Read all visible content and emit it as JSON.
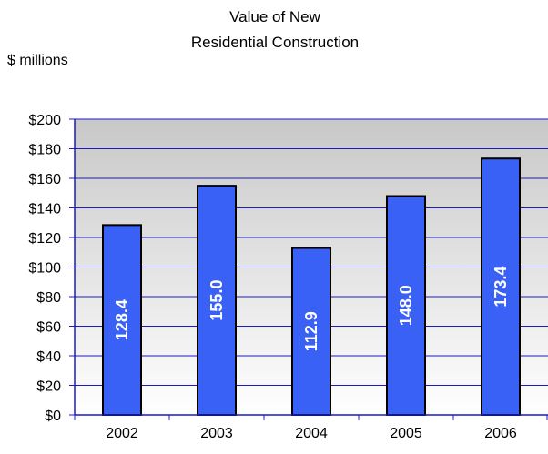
{
  "chart_data": {
    "type": "bar",
    "title_lines": [
      "Value of New",
      "Residential Construction"
    ],
    "ylabel": "$ millions",
    "xlabel": "",
    "categories": [
      "2002",
      "2003",
      "2004",
      "2005",
      "2006"
    ],
    "values": [
      128.4,
      155.0,
      112.9,
      148.0,
      173.4
    ],
    "value_labels": [
      "128.4",
      "155.0",
      "112.9",
      "148.0",
      "173.4"
    ],
    "ylim": [
      0,
      200
    ],
    "y_ticks": [
      0,
      20,
      40,
      60,
      80,
      100,
      120,
      140,
      160,
      180,
      200
    ],
    "y_tick_labels": [
      "$0",
      "$20",
      "$40",
      "$60",
      "$80",
      "$100",
      "$120",
      "$140",
      "$160",
      "$180",
      "$200"
    ],
    "grid": true,
    "legend": "none",
    "colors": {
      "bar_fill": "#3a61f5",
      "bar_stroke": "#000000",
      "gridline": "#1a1acc",
      "plot_bg_top": "#c8c8c8",
      "plot_bg_bottom": "#ffffff",
      "axis": "#1a1acc",
      "value_label": "#ffffff"
    }
  }
}
